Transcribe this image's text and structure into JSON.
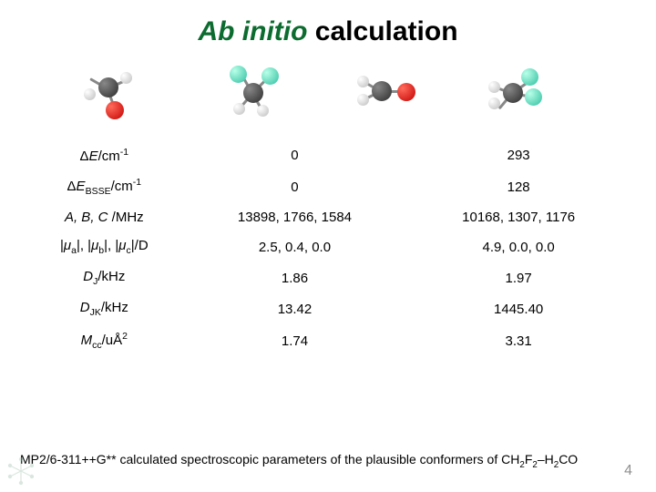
{
  "title": {
    "italic": "Ab initio",
    "rest": " calculation"
  },
  "table": {
    "rows": [
      {
        "label_html": "Δ<i>E</i>/cm<span class='sup'>-1</span>",
        "col1": "0",
        "col2": "293"
      },
      {
        "label_html": "Δ<i>E</i><span class='sub'>BSSE</span>/cm<span class='sup'>-1</span>",
        "col1": "0",
        "col2": "128"
      },
      {
        "label_html": "<i>A, B, C</i> /MHz",
        "col1": "13898, 1766, 1584",
        "col2": "10168, 1307, 1176"
      },
      {
        "label_html": "|<i>μ</i><span class='sub'>a</span>|, |<i>μ</i><span class='sub'>b</span>|, |<i>μ</i><span class='sub'>c</span>|/D",
        "col1": "2.5, 0.4, 0.0",
        "col2": "4.9, 0.0, 0.0"
      },
      {
        "label_html": "<i>D</i><span class='sub'>J</span>/kHz",
        "col1": "1.86",
        "col2": "1.97"
      },
      {
        "label_html": "<i>D</i><span class='sub'>JK</span>/kHz",
        "col1": "13.42",
        "col2": "1445.40"
      },
      {
        "label_html": "<i>M</i><span class='sub'>cc</span>/uÅ<span class='sup'>2</span>",
        "col1": "1.74",
        "col2": "3.31"
      }
    ]
  },
  "caption_html": "MP2/6-311++G** calculated spectroscopic parameters of the plausible conformers of CH<span class='sub'>2</span>F<span class='sub'>2</span>–H<span class='sub'>2</span>CO",
  "page_number": "4",
  "colors": {
    "title_italic": "#0c6b2f",
    "pagenum": "#909090"
  }
}
